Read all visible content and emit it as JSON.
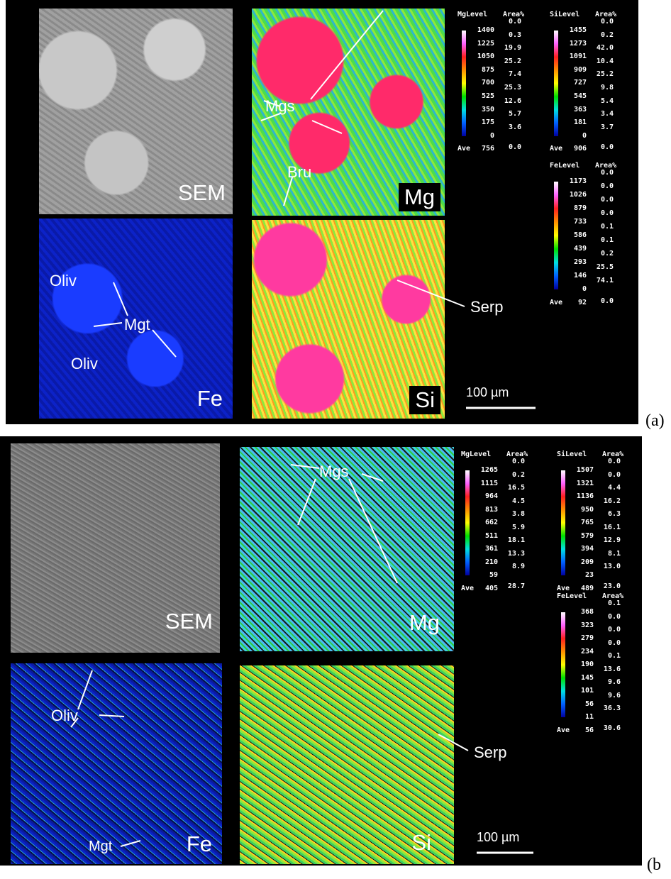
{
  "panels": [
    {
      "label": "(a)",
      "tiles": [
        "SEM",
        "Mg",
        "Fe",
        "Si"
      ],
      "annotations": [
        "Mgs",
        "Bru",
        "Oliv",
        "Mgt",
        "Oliv",
        "Serp"
      ],
      "scale_bar": "100 µm",
      "legends": [
        {
          "title": "MgLevel",
          "area_header": "Area%",
          "levels": [
            "1400",
            "1225",
            "1050",
            "875",
            "700",
            "525",
            "350",
            "175",
            "0"
          ],
          "areas": [
            "0.0",
            "0.3",
            "19.9",
            "25.2",
            "7.4",
            "25.3",
            "12.6",
            "5.7",
            "3.6",
            "0.0"
          ],
          "ave_label": "Ave",
          "ave": "756"
        },
        {
          "title": "SiLevel",
          "area_header": "Area%",
          "levels": [
            "1455",
            "1273",
            "1091",
            "909",
            "727",
            "545",
            "363",
            "181",
            "0"
          ],
          "areas": [
            "0.0",
            "0.2",
            "42.0",
            "10.4",
            "25.2",
            "9.8",
            "5.4",
            "3.4",
            "3.7",
            "0.0"
          ],
          "ave_label": "Ave",
          "ave": "906"
        },
        {
          "title": "FeLevel",
          "area_header": "Area%",
          "levels": [
            "1173",
            "1026",
            "879",
            "733",
            "586",
            "439",
            "293",
            "146",
            "0"
          ],
          "areas": [
            "0.0",
            "0.0",
            "0.0",
            "0.0",
            "0.1",
            "0.1",
            "0.2",
            "25.5",
            "74.1",
            "0.0"
          ],
          "ave_label": "Ave",
          "ave": "92"
        }
      ]
    },
    {
      "label": "(b",
      "tiles": [
        "SEM",
        "Mg",
        "Fe",
        "Si"
      ],
      "annotations": [
        "Mgs",
        "Oliv",
        "Mgt",
        "Serp"
      ],
      "scale_bar": "100 µm",
      "legends": [
        {
          "title": "MgLevel",
          "area_header": "Area%",
          "levels": [
            "1265",
            "1115",
            "964",
            "813",
            "662",
            "511",
            "361",
            "210",
            "59"
          ],
          "areas": [
            "0.0",
            "0.2",
            "16.5",
            "4.5",
            "3.8",
            "5.9",
            "18.1",
            "13.3",
            "8.9",
            "28.7"
          ],
          "ave_label": "Ave",
          "ave": "405"
        },
        {
          "title": "SiLevel",
          "area_header": "Area%",
          "levels": [
            "1507",
            "1321",
            "1136",
            "950",
            "765",
            "579",
            "394",
            "209",
            "23"
          ],
          "areas": [
            "0.0",
            "0.0",
            "4.4",
            "16.2",
            "6.3",
            "16.1",
            "12.9",
            "8.1",
            "13.0",
            "23.0"
          ],
          "ave_label": "Ave",
          "ave": "489"
        },
        {
          "title": "FeLevel",
          "area_header": "Area%",
          "levels": [
            "368",
            "323",
            "279",
            "234",
            "190",
            "145",
            "101",
            "56",
            "11"
          ],
          "areas": [
            "0.1",
            "0.0",
            "0.0",
            "0.0",
            "0.1",
            "13.6",
            "9.6",
            "9.6",
            "36.3",
            "30.6"
          ],
          "ave_label": "Ave",
          "ave": "56"
        }
      ]
    }
  ]
}
